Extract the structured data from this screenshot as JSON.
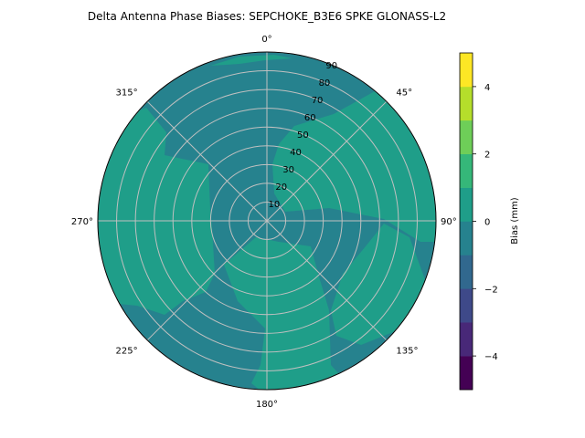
{
  "chart_data": {
    "type": "contour-polar",
    "title": "Delta Antenna Phase Biases: SEPCHOKE_B3E6   SPKE GLONASS-L2",
    "azimuth_labels": [
      {
        "az": 0,
        "label": "0°"
      },
      {
        "az": 45,
        "label": "45°"
      },
      {
        "az": 90,
        "label": "90°"
      },
      {
        "az": 135,
        "label": "135°"
      },
      {
        "az": 180,
        "label": "180°"
      },
      {
        "az": 225,
        "label": "225°"
      },
      {
        "az": 270,
        "label": "270°"
      },
      {
        "az": 315,
        "label": "315°"
      }
    ],
    "radial_labels": [
      "10",
      "20",
      "30",
      "40",
      "50",
      "60",
      "70",
      "80",
      "90"
    ],
    "radial_range": [
      0,
      90
    ],
    "colorbar": {
      "label": "Bias (mm)",
      "range": [
        -5,
        5
      ],
      "levels": [
        -5,
        -4,
        -3,
        -2,
        -1,
        0,
        1,
        2,
        3,
        4,
        5
      ],
      "ticks": [
        "−4",
        "−2",
        "0",
        "2",
        "4"
      ],
      "tick_values": [
        -4,
        -2,
        0,
        2,
        4
      ],
      "colors": [
        "#440154",
        "#482878",
        "#3e4989",
        "#31688e",
        "#26828e",
        "#1f9e89",
        "#35b779",
        "#6ece58",
        "#b5de2b",
        "#fde725"
      ]
    },
    "regions": [
      {
        "level_band": [
          -1,
          0
        ],
        "color": "#26828e",
        "description": "background"
      },
      {
        "level_band": [
          0,
          1
        ],
        "color": "#1f9e89",
        "description": "west sector"
      },
      {
        "level_band": [
          0,
          1
        ],
        "color": "#1f9e89",
        "description": "northeast sector"
      },
      {
        "level_band": [
          0,
          1
        ],
        "color": "#1f9e89",
        "description": "south sector"
      },
      {
        "level_band": [
          0,
          1
        ],
        "color": "#1f9e89",
        "description": "southeast sector"
      }
    ],
    "grid": true
  }
}
